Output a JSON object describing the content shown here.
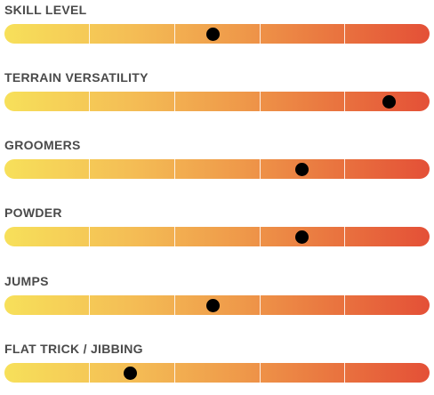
{
  "scale": {
    "levels": 5,
    "gradient_colors": [
      "#f7e05a",
      "#f4bd55",
      "#ef9a4a",
      "#e9743f",
      "#e45037"
    ],
    "marker_color": "#000000"
  },
  "ratings": [
    {
      "label": "SKILL LEVEL",
      "level": 0.49
    },
    {
      "label": "TERRAIN VERSATILITY",
      "level": 0.905
    },
    {
      "label": "GROOMERS",
      "level": 0.7
    },
    {
      "label": "POWDER",
      "level": 0.7
    },
    {
      "label": "JUMPS",
      "level": 0.49
    },
    {
      "label": "FLAT TRICK / JIBBING",
      "level": 0.295
    }
  ]
}
